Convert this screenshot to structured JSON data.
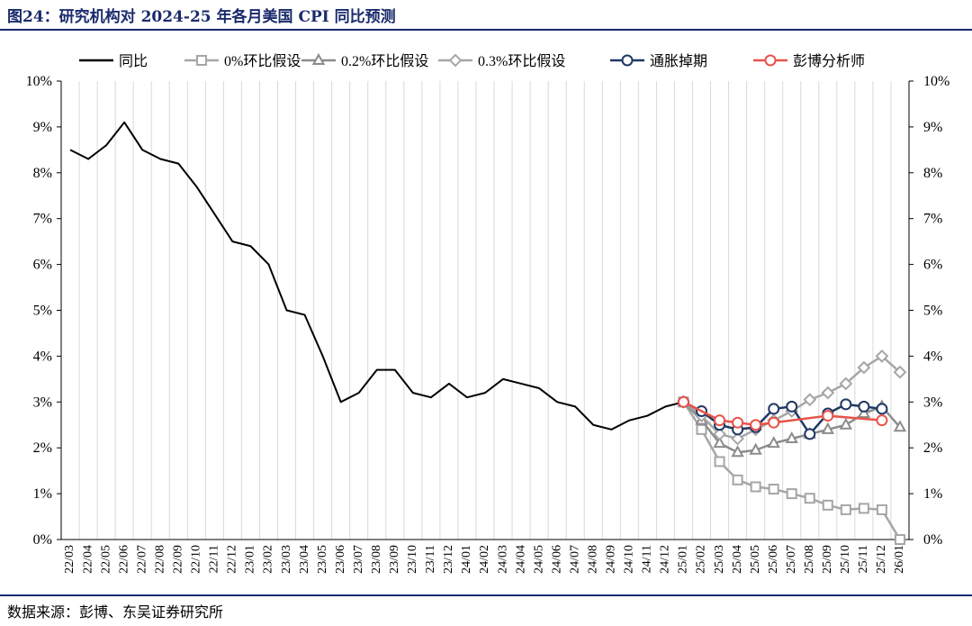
{
  "figure": {
    "title": "图24：研究机构对 2024-25 年各月美国 CPI 同比预测",
    "source": "数据来源：彭博、东吴证券研究所"
  },
  "chart_data": {
    "type": "line",
    "x": [
      "22/03",
      "22/04",
      "22/05",
      "22/06",
      "22/07",
      "22/08",
      "22/09",
      "22/10",
      "22/11",
      "22/12",
      "23/01",
      "23/02",
      "23/03",
      "23/04",
      "23/05",
      "23/06",
      "23/07",
      "23/08",
      "23/09",
      "23/10",
      "23/11",
      "23/12",
      "24/01",
      "24/02",
      "24/03",
      "24/04",
      "24/05",
      "24/06",
      "24/07",
      "24/08",
      "24/09",
      "24/10",
      "24/11",
      "24/12",
      "25/01",
      "25/02",
      "25/03",
      "25/04",
      "25/05",
      "25/06",
      "25/07",
      "25/08",
      "25/09",
      "25/10",
      "25/11",
      "25/12",
      "26/01"
    ],
    "y_ticks": [
      "0%",
      "1%",
      "2%",
      "3%",
      "4%",
      "5%",
      "6%",
      "7%",
      "8%",
      "9%",
      "10%"
    ],
    "ylim": [
      0,
      10
    ],
    "y_unit": "%",
    "secondary_axis": true,
    "grid": "vertical",
    "legend_position": "top",
    "series": [
      {
        "name": "同比",
        "color": "#000000",
        "marker": "none",
        "values": [
          8.5,
          8.3,
          8.6,
          9.1,
          8.5,
          8.3,
          8.2,
          7.7,
          7.1,
          6.5,
          6.4,
          6.0,
          5.0,
          4.9,
          4.0,
          3.0,
          3.2,
          3.7,
          3.7,
          3.2,
          3.1,
          3.4,
          3.1,
          3.2,
          3.5,
          3.4,
          3.3,
          3.0,
          2.9,
          2.5,
          2.4,
          2.6,
          2.7,
          2.9,
          3.0,
          null,
          null,
          null,
          null,
          null,
          null,
          null,
          null,
          null,
          null,
          null,
          null
        ]
      },
      {
        "name": "0%环比假设",
        "color": "#a6a6a6",
        "marker": "square",
        "values": [
          null,
          null,
          null,
          null,
          null,
          null,
          null,
          null,
          null,
          null,
          null,
          null,
          null,
          null,
          null,
          null,
          null,
          null,
          null,
          null,
          null,
          null,
          null,
          null,
          null,
          null,
          null,
          null,
          null,
          null,
          null,
          null,
          null,
          null,
          3.0,
          2.4,
          1.7,
          1.3,
          1.15,
          1.1,
          1.0,
          0.9,
          0.75,
          0.65,
          0.68,
          0.65,
          0.0
        ]
      },
      {
        "name": "0.2%环比假设",
        "color": "#8c8c8c",
        "marker": "triangle",
        "values": [
          null,
          null,
          null,
          null,
          null,
          null,
          null,
          null,
          null,
          null,
          null,
          null,
          null,
          null,
          null,
          null,
          null,
          null,
          null,
          null,
          null,
          null,
          null,
          null,
          null,
          null,
          null,
          null,
          null,
          null,
          null,
          null,
          null,
          null,
          3.0,
          2.6,
          2.1,
          1.9,
          1.95,
          2.1,
          2.2,
          2.3,
          2.4,
          2.5,
          2.75,
          2.9,
          2.45
        ]
      },
      {
        "name": "0.3%环比假设",
        "color": "#a6a6a6",
        "marker": "diamond",
        "values": [
          null,
          null,
          null,
          null,
          null,
          null,
          null,
          null,
          null,
          null,
          null,
          null,
          null,
          null,
          null,
          null,
          null,
          null,
          null,
          null,
          null,
          null,
          null,
          null,
          null,
          null,
          null,
          null,
          null,
          null,
          null,
          null,
          null,
          null,
          3.0,
          2.7,
          2.3,
          2.2,
          2.4,
          2.6,
          2.8,
          3.05,
          3.2,
          3.4,
          3.75,
          4.0,
          3.65
        ]
      },
      {
        "name": "通胀掉期",
        "color": "#1f3864",
        "marker": "circle",
        "values": [
          null,
          null,
          null,
          null,
          null,
          null,
          null,
          null,
          null,
          null,
          null,
          null,
          null,
          null,
          null,
          null,
          null,
          null,
          null,
          null,
          null,
          null,
          null,
          null,
          null,
          null,
          null,
          null,
          null,
          null,
          null,
          null,
          null,
          null,
          3.0,
          2.8,
          2.5,
          2.4,
          2.45,
          2.85,
          2.9,
          2.3,
          2.75,
          2.95,
          2.9,
          2.85,
          null
        ]
      },
      {
        "name": "彭博分析师",
        "color": "#e8534a",
        "marker": "circle",
        "values": [
          null,
          null,
          null,
          null,
          null,
          null,
          null,
          null,
          null,
          null,
          null,
          null,
          null,
          null,
          null,
          null,
          null,
          null,
          null,
          null,
          null,
          null,
          null,
          null,
          null,
          null,
          null,
          null,
          null,
          null,
          null,
          null,
          null,
          null,
          3.0,
          null,
          2.6,
          2.55,
          2.5,
          2.55,
          null,
          null,
          2.7,
          null,
          null,
          2.6,
          null
        ]
      }
    ]
  }
}
